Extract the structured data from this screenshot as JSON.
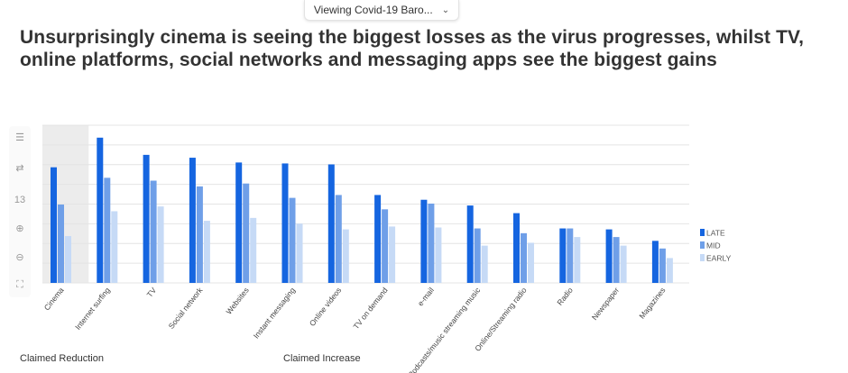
{
  "viewer": {
    "title": "Viewing Covid-19 Baro...",
    "chevron_icon": "chevron-down-icon"
  },
  "headline": "Unsurprisingly cinema is seeing the biggest losses as the virus progresses, whilst TV, online platforms, social networks and messaging apps see the biggest gains",
  "toolbar": {
    "zoom_level": "13"
  },
  "colors": {
    "late": "#1565e0",
    "mid": "#6f9fe8",
    "early": "#c6daf6",
    "shade": "#ececec",
    "grid": "#e4e4e4"
  },
  "footer": {
    "left": "Claimed Reduction",
    "right": "Claimed Increase"
  },
  "chart_data": {
    "type": "bar",
    "categories": [
      "Cinema",
      "Internet surfing",
      "TV",
      "Social network",
      "Websites",
      "Instant messaging",
      "Online videos",
      "TV on demand",
      "e-mail",
      "Podcasts/music streaming music",
      "Online/Streaming radio",
      "Radio",
      "Newspaper",
      "Magazines"
    ],
    "series": [
      {
        "name": "LATE",
        "values": [
          121,
          152,
          134,
          131,
          126,
          125,
          124,
          92,
          87,
          81,
          73,
          57,
          56,
          44
        ]
      },
      {
        "name": "MID",
        "values": [
          82,
          110,
          107,
          101,
          104,
          89,
          92,
          77,
          83,
          57,
          52,
          57,
          48,
          36
        ]
      },
      {
        "name": "EARLY",
        "values": [
          49,
          75,
          80,
          65,
          68,
          62,
          56,
          59,
          58,
          39,
          42,
          48,
          39,
          26
        ]
      }
    ],
    "ylim": [
      0,
      165
    ],
    "grid": true,
    "legend_position": "right",
    "shaded_categories": [
      "Cinema"
    ]
  }
}
